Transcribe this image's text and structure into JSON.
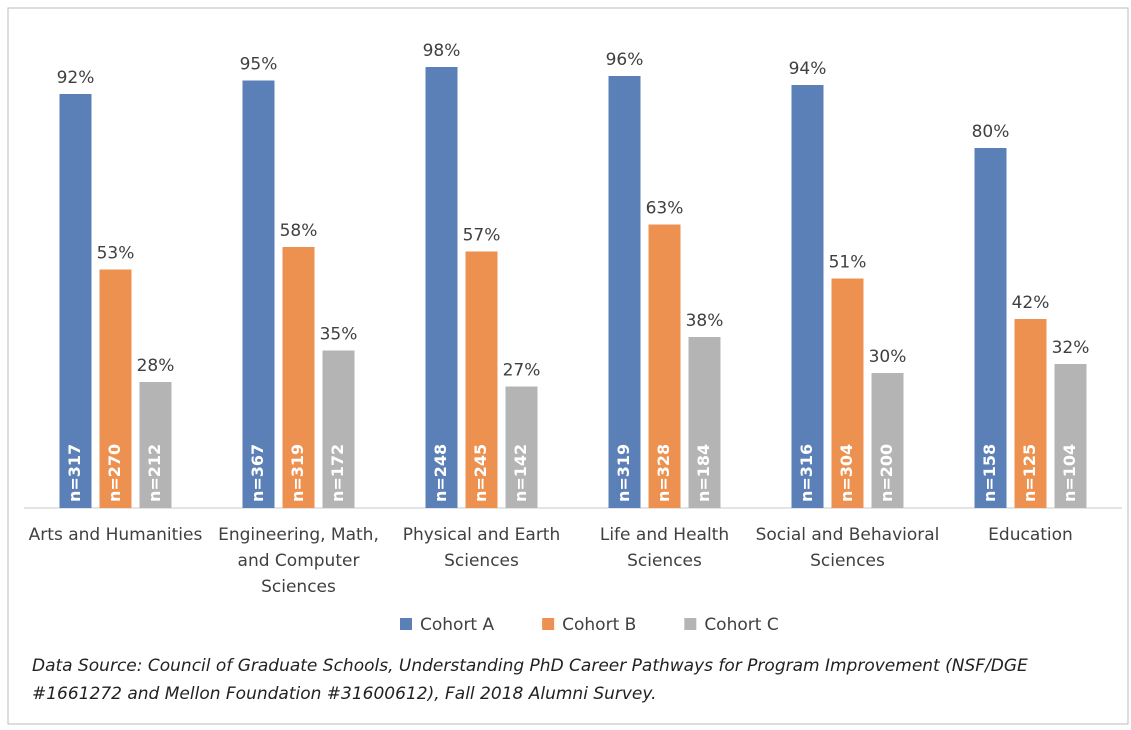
{
  "chart_data": {
    "type": "bar",
    "categories": [
      "Arts and Humanities",
      "Engineering, Math, and Computer Sciences",
      "Physical and Earth Sciences",
      "Life and Health Sciences",
      "Social and Behavioral Sciences",
      "Education"
    ],
    "series": [
      {
        "name": "Cohort A",
        "color": "#5b80b7",
        "values": [
          92,
          95,
          98,
          96,
          94,
          80
        ],
        "value_labels": [
          "92%",
          "95%",
          "98%",
          "96%",
          "94%",
          "80%"
        ],
        "n_labels": [
          "n=317",
          "n=367",
          "n=248",
          "n=319",
          "n=316",
          "n=158"
        ]
      },
      {
        "name": "Cohort B",
        "color": "#ec914f",
        "values": [
          53,
          58,
          57,
          63,
          51,
          42
        ],
        "value_labels": [
          "53%",
          "58%",
          "57%",
          "63%",
          "51%",
          "42%"
        ],
        "n_labels": [
          "n=270",
          "n=319",
          "n=245",
          "n=328",
          "n=304",
          "n=125"
        ]
      },
      {
        "name": "Cohort C",
        "color": "#b4b4b4",
        "values": [
          28,
          35,
          27,
          38,
          30,
          32
        ],
        "value_labels": [
          "28%",
          "35%",
          "27%",
          "38%",
          "30%",
          "32%"
        ],
        "n_labels": [
          "n=212",
          "n=172",
          "n=142",
          "n=184",
          "n=200",
          "n=104"
        ]
      }
    ],
    "ylim": [
      0,
      100
    ],
    "legend": "bottom",
    "source": "Data Source: Council of Graduate Schools, Understanding PhD Career Pathways for Program Improvement (NSF/DGE #1661272 and Mellon Foundation #31600612), Fall 2018 Alumni Survey."
  }
}
